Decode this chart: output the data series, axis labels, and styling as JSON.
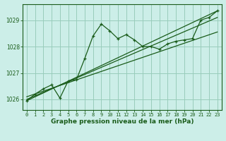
{
  "title": "Graphe pression niveau de la mer (hPa)",
  "bg_color": "#cceee8",
  "line_color": "#1a5c1a",
  "grid_color": "#99ccbb",
  "xlim": [
    -0.5,
    23.5
  ],
  "ylim": [
    1025.6,
    1029.6
  ],
  "yticks": [
    1026,
    1027,
    1028,
    1029
  ],
  "xticks": [
    0,
    1,
    2,
    3,
    4,
    5,
    6,
    7,
    8,
    9,
    10,
    11,
    12,
    13,
    14,
    15,
    16,
    17,
    18,
    19,
    20,
    21,
    22,
    23
  ],
  "series_main": {
    "x": [
      0,
      1,
      2,
      3,
      4,
      5,
      6,
      7,
      8,
      9,
      10,
      11,
      12,
      13,
      14,
      15,
      16,
      17,
      18,
      19,
      20,
      21,
      22,
      23
    ],
    "y": [
      1025.95,
      1026.2,
      1026.4,
      1026.55,
      1026.05,
      1026.7,
      1026.75,
      1027.55,
      1028.4,
      1028.85,
      1028.6,
      1028.3,
      1028.45,
      1028.25,
      1028.0,
      1028.0,
      1027.9,
      1028.1,
      1028.2,
      1028.25,
      1028.3,
      1029.0,
      1029.1,
      1029.35
    ]
  },
  "trend_lines": [
    {
      "x": [
        0,
        23
      ],
      "y": [
        1025.95,
        1029.35
      ]
    },
    {
      "x": [
        0,
        23
      ],
      "y": [
        1026.1,
        1028.55
      ]
    },
    {
      "x": [
        0,
        23
      ],
      "y": [
        1026.0,
        1029.1
      ]
    }
  ],
  "tick_fontsize": 5.0,
  "label_fontsize": 6.5
}
